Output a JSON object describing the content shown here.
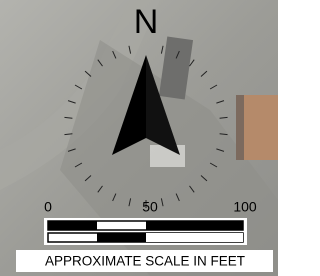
{
  "north_arrow": {
    "label": "N"
  },
  "scale_bar": {
    "labels": [
      "0",
      "50",
      "100"
    ],
    "caption": "APPROXIMATE SCALE IN FEET"
  }
}
